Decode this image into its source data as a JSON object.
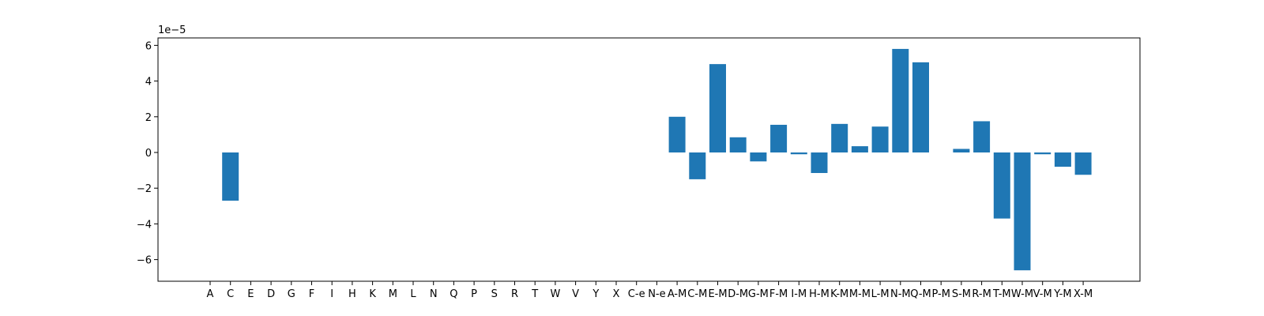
{
  "chart_data": {
    "type": "bar",
    "title": "",
    "xlabel": "",
    "ylabel": "",
    "y_offset_label": "1e−5",
    "ylim": [
      -7.25e-05,
      6.3e-05
    ],
    "y_ticks": [
      -6e-05,
      -4e-05,
      -2e-05,
      0,
      2e-05,
      4e-05,
      6e-05
    ],
    "y_tick_labels": [
      "−6",
      "−4",
      "−2",
      "0",
      "2",
      "4",
      "6"
    ],
    "grid": false,
    "bar_color": "#1f77b4",
    "categories": [
      "A",
      "C",
      "E",
      "D",
      "G",
      "F",
      "I",
      "H",
      "K",
      "M",
      "L",
      "N",
      "Q",
      "P",
      "S",
      "R",
      "T",
      "W",
      "V",
      "Y",
      "X",
      "C-e",
      "N-e",
      "A-M",
      "C-M",
      "E-M",
      "D-M",
      "G-M",
      "F-M",
      "I-M",
      "H-M",
      "K-M",
      "M-M",
      "L-M",
      "N-M",
      "Q-M",
      "P-M",
      "S-M",
      "R-M",
      "T-M",
      "W-M",
      "V-M",
      "Y-M",
      "X-M"
    ],
    "values": [
      0,
      -2.7e-05,
      0,
      0,
      0,
      0,
      0,
      0,
      0,
      0,
      0,
      0,
      0,
      0,
      0,
      0,
      0,
      0,
      0,
      0,
      0,
      0,
      0,
      2e-05,
      -1.5e-05,
      4.95e-05,
      8.5e-06,
      -5e-06,
      1.55e-05,
      -1e-06,
      -1.15e-05,
      1.6e-05,
      3.5e-06,
      1.45e-05,
      5.8e-05,
      5.05e-05,
      0,
      2e-06,
      1.75e-05,
      -3.7e-05,
      -6.6e-05,
      -1e-06,
      -8e-06,
      -1.25e-05
    ]
  }
}
